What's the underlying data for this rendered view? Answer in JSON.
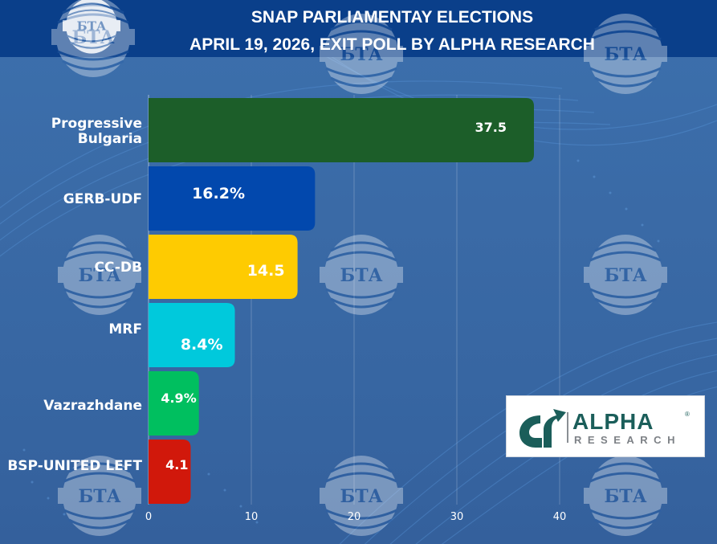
{
  "header": {
    "title_line1": "SNAP PARLIAMENTAY ELECTIONS",
    "title_line2": "APRIL 19, 2026, EXIT POLL BY ALPHA RESEARCH",
    "background_color": "#0a3f8a"
  },
  "watermark": {
    "text": "БТА",
    "icon": "bta-logo-icon"
  },
  "logo": {
    "name": "ALPHA",
    "subtitle": "RESEARCH",
    "registered_mark": "®",
    "icon": "alpha-research-logo-icon",
    "color": "#1b5e5a"
  },
  "chart_data": {
    "type": "bar",
    "orientation": "horizontal",
    "title": "SNAP PARLIAMENTAY ELECTIONS APRIL 19, 2026, EXIT POLL BY ALPHA RESEARCH",
    "xlabel": "",
    "ylabel": "",
    "xlim": [
      0,
      50
    ],
    "xticks": [
      0,
      10,
      20,
      30,
      40
    ],
    "grid": true,
    "legend": "none",
    "categories": [
      "Progressive Bulgaria",
      "GERB-UDF",
      "CC-DB",
      "MRF",
      "Vazrazhdane",
      "BSP-UNITED LEFT"
    ],
    "values": [
      37.5,
      16.2,
      14.5,
      8.4,
      4.9,
      4.1
    ],
    "data_labels": [
      "37.5",
      "16.2%",
      "14.5",
      "8.4%",
      "4.9%",
      "4.1"
    ],
    "colors": [
      "#1c5e29",
      "#0248ad",
      "#fecb01",
      "#00c9dc",
      "#00bf5f",
      "#d1180b"
    ]
  }
}
